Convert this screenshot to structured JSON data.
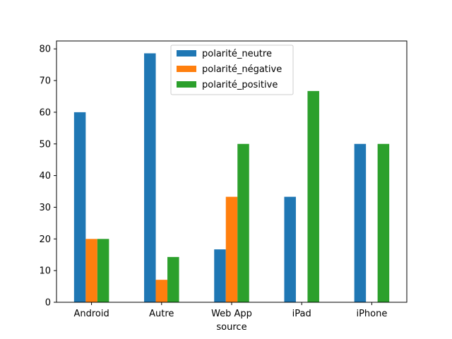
{
  "chart_data": {
    "type": "bar",
    "categories": [
      "Android",
      "Autre",
      "Web App",
      "iPad",
      "iPhone"
    ],
    "series": [
      {
        "name": "polarité_neutre",
        "color": "#1f77b4",
        "values": [
          60,
          78.6,
          16.7,
          33.3,
          50
        ]
      },
      {
        "name": "polarité_négative",
        "color": "#ff7f0e",
        "values": [
          20,
          7.1,
          33.3,
          0,
          0
        ]
      },
      {
        "name": "polarité_positive",
        "color": "#2ca02c",
        "values": [
          20,
          14.3,
          50,
          66.7,
          50
        ]
      }
    ],
    "xlabel": "source",
    "ylabel": "",
    "ylim": [
      0,
      82.5
    ],
    "yticks": [
      0,
      10,
      20,
      30,
      40,
      50,
      60,
      70,
      80
    ],
    "grid": false,
    "legend_position": "upper center"
  }
}
